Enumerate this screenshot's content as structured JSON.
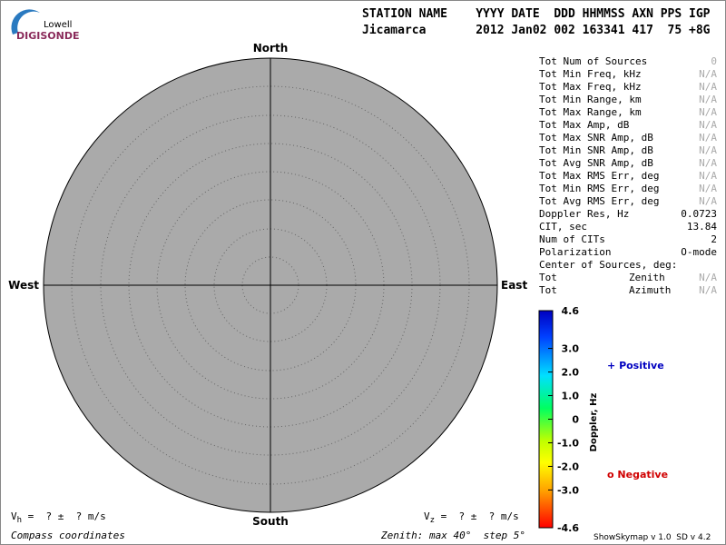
{
  "header": {
    "logo_top": "Lowell",
    "logo_bottom": "DIGISONDE",
    "columns": "STATION NAME    YYYY DATE  DDD HHMMSS AXN PPS IGP",
    "values": "Jicamarca       2012 Jan02 002 163341 417  75 +8G"
  },
  "compass": {
    "north": "North",
    "south": "South",
    "east": "East",
    "west": "West"
  },
  "stats": [
    {
      "label": "Tot Num of Sources",
      "value": "0",
      "muted": true
    },
    {
      "label": "Tot Min Freq, kHz",
      "value": "N/A",
      "muted": true
    },
    {
      "label": "Tot Max Freq, kHz",
      "value": "N/A",
      "muted": true
    },
    {
      "label": "Tot Min Range, km",
      "value": "N/A",
      "muted": true
    },
    {
      "label": "Tot Max Range, km",
      "value": "N/A",
      "muted": true
    },
    {
      "label": "Tot Max Amp, dB",
      "value": "N/A",
      "muted": true
    },
    {
      "label": "Tot Max SNR Amp, dB",
      "value": "N/A",
      "muted": true
    },
    {
      "label": "Tot Min SNR Amp, dB",
      "value": "N/A",
      "muted": true
    },
    {
      "label": "Tot Avg SNR Amp, dB",
      "value": "N/A",
      "muted": true
    },
    {
      "label": "Tot Max RMS Err, deg",
      "value": "N/A",
      "muted": true
    },
    {
      "label": "Tot Min RMS Err, deg",
      "value": "N/A",
      "muted": true
    },
    {
      "label": "Tot Avg RMS Err, deg",
      "value": "N/A",
      "muted": true
    },
    {
      "label": "Doppler Res, Hz",
      "value": "0.0723",
      "muted": false
    },
    {
      "label": "CIT, sec",
      "value": "13.84",
      "muted": false
    },
    {
      "label": "Num of CITs",
      "value": "2",
      "muted": false
    },
    {
      "label": "Polarization",
      "value": "O-mode",
      "muted": false
    },
    {
      "label": "Center of Sources, deg:"
    },
    {
      "label": "Tot",
      "sublabel": "Zenith",
      "value": "N/A",
      "muted": true
    },
    {
      "label": "Tot",
      "sublabel": "Azimuth",
      "value": "N/A",
      "muted": true
    }
  ],
  "colorbar": {
    "title": "Doppler, Hz",
    "lim": [
      -4.6,
      4.6
    ],
    "ticks": [
      4.6,
      {
        "value": 3,
        "label": "3.0"
      },
      {
        "value": 2,
        "label": "2.0"
      },
      {
        "value": 1,
        "label": "1.0"
      },
      0,
      {
        "value": -1,
        "label": "-1.0"
      },
      {
        "value": -2,
        "label": "-2.0"
      },
      {
        "value": -3,
        "label": "-3.0"
      },
      -4.6
    ]
  },
  "legend": {
    "positive_symbol": "+",
    "positive": "Positive",
    "negative_symbol": "o",
    "negative": "Negative"
  },
  "footer": {
    "vh": {
      "symbol": "V",
      "sub": "h",
      "text": " =  ? ±  ? m/s"
    },
    "vz": {
      "symbol": "V",
      "sub": "z",
      "text": " =  ? ±  ? m/s"
    },
    "coordinates": "Compass coordinates",
    "zenith": "Zenith: max 40°  step 5°",
    "version": "ShowSkymap v 1.0  SD v 4.2"
  }
}
